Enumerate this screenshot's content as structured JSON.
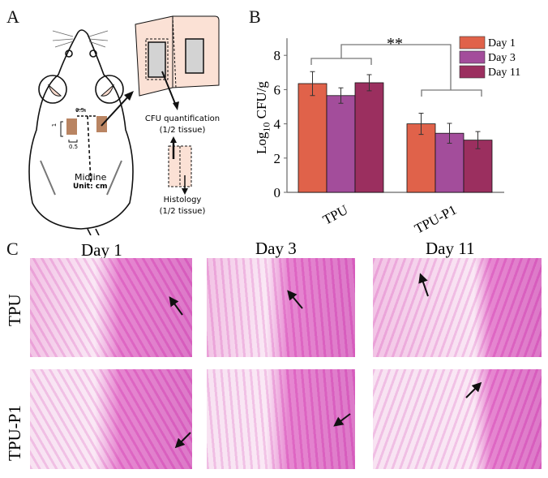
{
  "panels": {
    "a": "A",
    "b": "B",
    "c": "C"
  },
  "diagram": {
    "dim_top": "0.5",
    "dim_side": "1",
    "dim_bottom": "0.5",
    "midline": "Midline",
    "unit": "Unit: cm",
    "cfu_line1": "CFU quantification",
    "cfu_line2": "(1/2 tissue)",
    "histo_line1": "Histology",
    "histo_line2": "(1/2 tissue)"
  },
  "chart_data": {
    "type": "bar",
    "categories": [
      "TPU",
      "TPU-P1"
    ],
    "series": [
      {
        "name": "Day 1",
        "values": [
          6.35,
          4.0
        ],
        "errors": [
          0.7,
          0.62
        ],
        "color": "#e0624a"
      },
      {
        "name": "Day 3",
        "values": [
          5.65,
          3.45
        ],
        "errors": [
          0.45,
          0.58
        ],
        "color": "#a34d9b"
      },
      {
        "name": "Day 11",
        "values": [
          6.4,
          3.05
        ],
        "errors": [
          0.47,
          0.5
        ],
        "color": "#9b2f5f"
      }
    ],
    "ylabel": "Log10 CFU/g",
    "ylabel_main": "Log",
    "ylabel_sub": "10",
    "ylabel_rest": " CFU/g",
    "ylim": [
      0,
      9
    ],
    "yticks": [
      "0",
      "2",
      "4",
      "6",
      "8"
    ],
    "significance": "**",
    "legend_position": "top-right",
    "grid": false
  },
  "histology": {
    "columns": [
      "Day 1",
      "Day 3",
      "Day 11"
    ],
    "rows": [
      "TPU",
      "TPU-P1"
    ]
  }
}
